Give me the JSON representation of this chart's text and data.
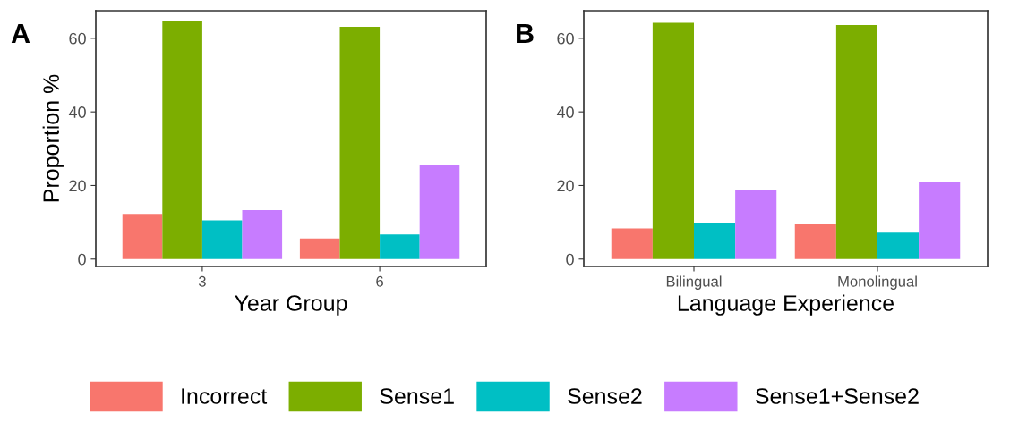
{
  "chart_data": [
    {
      "type": "bar",
      "title": "A",
      "xlabel": "Year Group",
      "ylabel": "Proportion %",
      "categories": [
        "3",
        "6"
      ],
      "series": [
        {
          "name": "Incorrect",
          "color": "#f8766d",
          "values": [
            12.3,
            5.6
          ]
        },
        {
          "name": "Sense1",
          "color": "#7cae00",
          "values": [
            64.8,
            63.1
          ]
        },
        {
          "name": "Sense2",
          "color": "#00bfc4",
          "values": [
            10.5,
            6.7
          ]
        },
        {
          "name": "Sense1+Sense2",
          "color": "#c77cff",
          "values": [
            13.3,
            25.5
          ]
        }
      ],
      "ylim": [
        -2,
        67.5
      ],
      "yticks": [
        0,
        20,
        40,
        60
      ],
      "grid": false,
      "legend": "bottom"
    },
    {
      "type": "bar",
      "title": "B",
      "xlabel": "Language Experience",
      "categories": [
        "Bilingual",
        "Monolingual"
      ],
      "series": [
        {
          "color": "#f8766d",
          "values": [
            8.3,
            9.4
          ]
        },
        {
          "color": "#7cae00",
          "values": [
            64.2,
            63.6
          ]
        },
        {
          "color": "#00bfc4",
          "values": [
            9.9,
            7.2
          ]
        },
        {
          "color": "#c77cff",
          "values": [
            18.8,
            20.9
          ]
        }
      ],
      "ylim": [
        -2,
        67.5
      ],
      "yticks": [
        0,
        20,
        40,
        60
      ],
      "grid": false
    }
  ]
}
